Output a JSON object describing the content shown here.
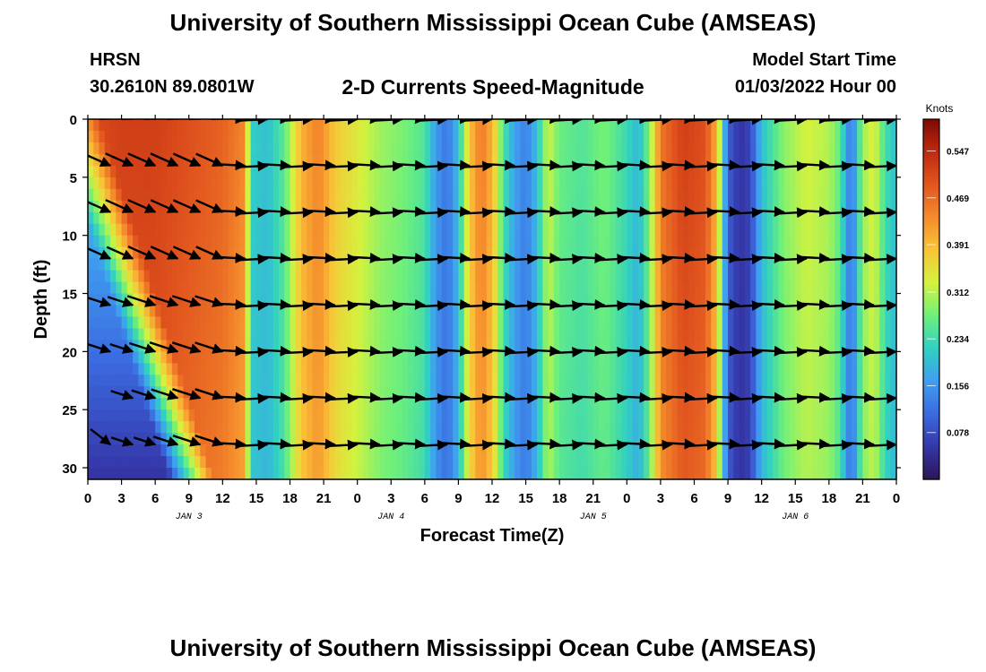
{
  "header": {
    "title": "University of Southern Mississippi Ocean Cube (AMSEAS)",
    "station": "HRSN",
    "coords": "30.2610N  89.0801W",
    "subtitle": "2-D Currents Speed-Magnitude",
    "model_start_label": "Model Start Time",
    "model_start_value": "01/03/2022 Hour 00"
  },
  "footer": {
    "title": "University of Southern Mississippi Ocean Cube (AMSEAS)"
  },
  "chart_data": {
    "type": "heatmap",
    "title": "2-D Currents Speed-Magnitude",
    "xlabel": "Forecast Time(Z)",
    "ylabel": "Depth (ft)",
    "xlim": [
      0,
      72
    ],
    "ylim": [
      31,
      0
    ],
    "x_ticks": [
      0,
      3,
      6,
      9,
      12,
      15,
      18,
      21,
      24,
      27,
      30,
      33,
      36,
      39,
      42,
      45,
      48,
      51,
      54,
      57,
      60,
      63,
      66,
      69,
      72
    ],
    "x_tick_labels": [
      "0",
      "3",
      "6",
      "9",
      "12",
      "15",
      "18",
      "21",
      "0",
      "3",
      "6",
      "9",
      "12",
      "15",
      "18",
      "21",
      "0",
      "3",
      "6",
      "9",
      "12",
      "15",
      "18",
      "21",
      "0"
    ],
    "y_ticks": [
      0,
      5,
      10,
      15,
      20,
      25,
      30
    ],
    "y_tick_labels": [
      "0",
      "5",
      "10",
      "15",
      "20",
      "25",
      "30"
    ],
    "date_labels": [
      {
        "label": "JAN 3",
        "x": 9
      },
      {
        "label": "JAN 4",
        "x": 27
      },
      {
        "label": "JAN 5",
        "x": 45
      },
      {
        "label": "JAN 6",
        "x": 63
      }
    ],
    "colorbar": {
      "unit": "Knots",
      "ticks": [
        0.547,
        0.469,
        0.391,
        0.312,
        0.234,
        0.156,
        0.078
      ],
      "tick_labels": [
        "0.547",
        "0.469",
        "0.391",
        "0.312",
        "0.234",
        "0.156",
        "0.078"
      ],
      "range": [
        0,
        0.6
      ],
      "colors": [
        "#2a1557",
        "#3537a8",
        "#3b6ae0",
        "#3f9ff0",
        "#30d0c2",
        "#6ef07a",
        "#d4f23e",
        "#f8c537",
        "#f58c2c",
        "#e2561f",
        "#c02a10",
        "#7d0a04"
      ]
    },
    "surface_speed_by_hour": [
      [
        0,
        0.5
      ],
      [
        3,
        0.52
      ],
      [
        6,
        0.52
      ],
      [
        9,
        0.5
      ],
      [
        12,
        0.48
      ],
      [
        14,
        0.44
      ],
      [
        14.5,
        0.22
      ],
      [
        16,
        0.2
      ],
      [
        17.5,
        0.26
      ],
      [
        19,
        0.4
      ],
      [
        20.5,
        0.45
      ],
      [
        22,
        0.38
      ],
      [
        24,
        0.34
      ],
      [
        26,
        0.3
      ],
      [
        28,
        0.28
      ],
      [
        30,
        0.25
      ],
      [
        31,
        0.16
      ],
      [
        32,
        0.12
      ],
      [
        33,
        0.2
      ],
      [
        34,
        0.38
      ],
      [
        35,
        0.46
      ],
      [
        36,
        0.4
      ],
      [
        37,
        0.25
      ],
      [
        38,
        0.17
      ],
      [
        39,
        0.13
      ],
      [
        40,
        0.2
      ],
      [
        41,
        0.33
      ],
      [
        42,
        0.27
      ],
      [
        44,
        0.25
      ],
      [
        46,
        0.28
      ],
      [
        48,
        0.23
      ],
      [
        49,
        0.19
      ],
      [
        50,
        0.28
      ],
      [
        51,
        0.46
      ],
      [
        53,
        0.52
      ],
      [
        55,
        0.5
      ],
      [
        56,
        0.4
      ],
      [
        57,
        0.1
      ],
      [
        58,
        0.05
      ],
      [
        59,
        0.07
      ],
      [
        60,
        0.2
      ],
      [
        62,
        0.29
      ],
      [
        64,
        0.33
      ],
      [
        66,
        0.31
      ],
      [
        67,
        0.26
      ],
      [
        67.5,
        0.18
      ],
      [
        68,
        0.11
      ],
      [
        69,
        0.3
      ],
      [
        70,
        0.34
      ],
      [
        71,
        0.24
      ],
      [
        72,
        0.2
      ]
    ],
    "vector_depths_ft": [
      0,
      4,
      8,
      12,
      16,
      20,
      24,
      28
    ],
    "vector_times_hr": [
      2,
      4,
      6,
      8,
      10,
      12,
      14,
      16,
      18,
      20,
      22,
      24,
      26,
      28,
      30,
      32,
      34,
      36,
      38,
      40,
      42,
      44,
      46,
      48,
      50,
      52,
      54,
      56,
      58,
      60,
      62,
      64,
      66,
      68,
      70,
      72
    ]
  }
}
